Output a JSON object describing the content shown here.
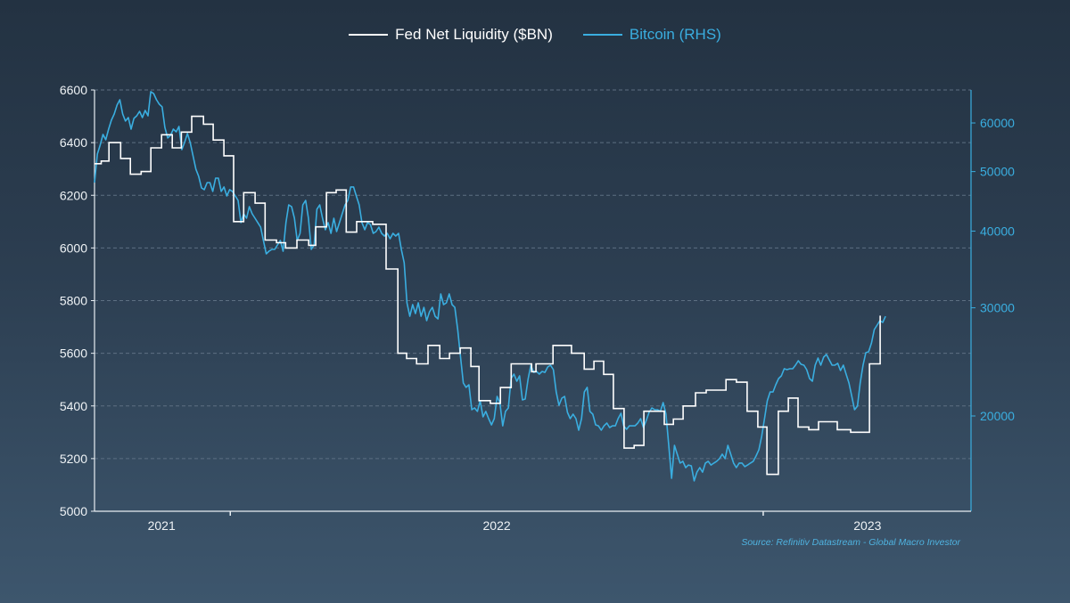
{
  "chart_data": {
    "type": "line",
    "title": "",
    "legend_placement": "top-center",
    "source": "Source: Refinitiv Datastream - Global Macro Investor",
    "x_axis": {
      "unit": "decimal year",
      "range": [
        2020.8,
        2023.415
      ],
      "tick_marks": [
        2021.205,
        2022.795
      ],
      "tick_labels": [
        {
          "label": "2021",
          "x": 2021.0
        },
        {
          "label": "2022",
          "x": 2022.0
        },
        {
          "label": "2023",
          "x": 2023.106
        }
      ]
    },
    "y_left": {
      "label": "Fed Net Liquidity ($BN)",
      "range": [
        5000,
        6600
      ],
      "ticks": [
        "6600",
        "6400",
        "6200",
        "6000",
        "5800",
        "5600",
        "5400",
        "5200",
        "5000"
      ],
      "grid": true
    },
    "y_right": {
      "label": "Bitcoin (RHS)",
      "scale": "log",
      "range": [
        13990,
        67900
      ],
      "ticks": [
        "60000",
        "50000",
        "40000",
        "30000",
        "20000"
      ]
    },
    "series": [
      {
        "name": "Fed Net Liquidity ($BN)",
        "axis": "left",
        "color": "#ffffff",
        "style": "step",
        "end_x": 2023.146,
        "steps": [
          [
            2020.8,
            6320
          ],
          [
            2020.82,
            6330
          ],
          [
            2020.843,
            6400
          ],
          [
            2020.878,
            6340
          ],
          [
            2020.907,
            6280
          ],
          [
            2020.939,
            6290
          ],
          [
            2020.968,
            6380
          ],
          [
            2021.0,
            6430
          ],
          [
            2021.032,
            6380
          ],
          [
            2021.059,
            6440
          ],
          [
            2021.09,
            6500
          ],
          [
            2021.125,
            6470
          ],
          [
            2021.154,
            6410
          ],
          [
            2021.186,
            6350
          ],
          [
            2021.215,
            6100
          ],
          [
            2021.245,
            6210
          ],
          [
            2021.279,
            6170
          ],
          [
            2021.309,
            6030
          ],
          [
            2021.343,
            6020
          ],
          [
            2021.37,
            6000
          ],
          [
            2021.404,
            6030
          ],
          [
            2021.439,
            6010
          ],
          [
            2021.46,
            6080
          ],
          [
            2021.492,
            6210
          ],
          [
            2021.521,
            6220
          ],
          [
            2021.551,
            6060
          ],
          [
            2021.582,
            6100
          ],
          [
            2021.63,
            6090
          ],
          [
            2021.67,
            5920
          ],
          [
            2021.705,
            5600
          ],
          [
            2021.731,
            5580
          ],
          [
            2021.761,
            5560
          ],
          [
            2021.795,
            5630
          ],
          [
            2021.83,
            5580
          ],
          [
            2021.859,
            5600
          ],
          [
            2021.891,
            5620
          ],
          [
            2021.923,
            5550
          ],
          [
            2021.947,
            5420
          ],
          [
            2021.981,
            5410
          ],
          [
            2022.011,
            5470
          ],
          [
            2022.043,
            5560
          ],
          [
            2022.104,
            5530
          ],
          [
            2022.117,
            5560
          ],
          [
            2022.168,
            5630
          ],
          [
            2022.223,
            5600
          ],
          [
            2022.261,
            5540
          ],
          [
            2022.29,
            5570
          ],
          [
            2022.319,
            5520
          ],
          [
            2022.348,
            5390
          ],
          [
            2022.38,
            5240
          ],
          [
            2022.41,
            5250
          ],
          [
            2022.439,
            5380
          ],
          [
            2022.5,
            5330
          ],
          [
            2022.527,
            5350
          ],
          [
            2022.556,
            5400
          ],
          [
            2022.593,
            5450
          ],
          [
            2022.625,
            5460
          ],
          [
            2022.684,
            5500
          ],
          [
            2022.715,
            5490
          ],
          [
            2022.747,
            5380
          ],
          [
            2022.779,
            5320
          ],
          [
            2022.806,
            5140
          ],
          [
            2022.84,
            5380
          ],
          [
            2022.87,
            5430
          ],
          [
            2022.899,
            5320
          ],
          [
            2022.931,
            5310
          ],
          [
            2022.96,
            5340
          ],
          [
            2023.016,
            5310
          ],
          [
            2023.056,
            5300
          ],
          [
            2023.112,
            5560
          ],
          [
            2023.144,
            5740
          ]
        ]
      },
      {
        "name": "Bitcoin (RHS)",
        "axis": "right",
        "color": "#3aaee0",
        "style": "line",
        "x_start": 2020.8,
        "x_end": 2023.16,
        "values": [
          47980,
          53400,
          55200,
          57470,
          56330,
          58630,
          60620,
          62050,
          64170,
          65460,
          62050,
          60420,
          61230,
          58630,
          61030,
          61640,
          62680,
          61230,
          62890,
          61640,
          67460,
          67010,
          65460,
          64380,
          63740,
          59020,
          56710,
          57270,
          58630,
          58040,
          59220,
          54290,
          55760,
          57660,
          55760,
          53040,
          50450,
          49120,
          47030,
          46720,
          47980,
          47980,
          46410,
          48790,
          48790,
          46410,
          47190,
          45630,
          46720,
          46410,
          45630,
          44880,
          41290,
          42690,
          41980,
          43840,
          42690,
          41980,
          41290,
          40600,
          38620,
          36730,
          37100,
          37350,
          37350,
          37970,
          38620,
          37100,
          41290,
          44130,
          43840,
          41980,
          38620,
          39660,
          44130,
          44880,
          41980,
          37350,
          37970,
          43410,
          44130,
          41980,
          40200,
          41290,
          39660,
          41980,
          39930,
          41290,
          42690,
          44130,
          44880,
          47190,
          47190,
          45630,
          44130,
          41290,
          40200,
          41290,
          41010,
          39660,
          39930,
          40600,
          39660,
          39270,
          39660,
          38870,
          39660,
          39270,
          39660,
          37350,
          35520,
          30560,
          29060,
          30360,
          29360,
          30560,
          29060,
          30050,
          28590,
          29560,
          30050,
          29060,
          28780,
          31600,
          30360,
          30560,
          31600,
          30360,
          30050,
          27650,
          25020,
          22630,
          22260,
          22480,
          20470,
          20610,
          20340,
          21170,
          19930,
          20340,
          19800,
          19340,
          19800,
          21520,
          21030,
          19270,
          20340,
          20610,
          23010,
          23400,
          22780,
          23240,
          21240,
          21310,
          22940,
          24190,
          23550,
          23630,
          23400,
          23630,
          23550,
          24030,
          24190,
          23790,
          21880,
          20820,
          21380,
          21520,
          20270,
          19800,
          20130,
          19800,
          18960,
          19800,
          21880,
          22260,
          20340,
          20130,
          19340,
          19270,
          18960,
          19270,
          19470,
          19150,
          19270,
          19270,
          19800,
          20200,
          19270,
          19020,
          19270,
          19270,
          19270,
          19470,
          19800,
          19150,
          19670,
          20270,
          20610,
          20470,
          20470,
          20340,
          21030,
          20130,
          17910,
          15830,
          17910,
          17330,
          16760,
          16870,
          16480,
          16640,
          16590,
          15680,
          16200,
          16480,
          16200,
          16760,
          16870,
          16640,
          16760,
          16870,
          17040,
          17330,
          17040,
          17910,
          17330,
          16760,
          16480,
          16760,
          16760,
          16540,
          16640,
          16760,
          16870,
          17210,
          17620,
          18520,
          19800,
          21170,
          21880,
          21880,
          22480,
          23010,
          23240,
          23870,
          23790,
          23870,
          23870,
          24190,
          24600,
          24270,
          24190,
          23790,
          23010,
          22780,
          24190,
          24850,
          24190,
          24930,
          25190,
          24680,
          24190,
          24190,
          24360,
          23710,
          24190,
          23400,
          22630,
          21520,
          20470,
          20750,
          22630,
          24190,
          25350,
          25440,
          26300,
          27650,
          28120,
          28590,
          28400,
          29060
        ]
      }
    ]
  }
}
